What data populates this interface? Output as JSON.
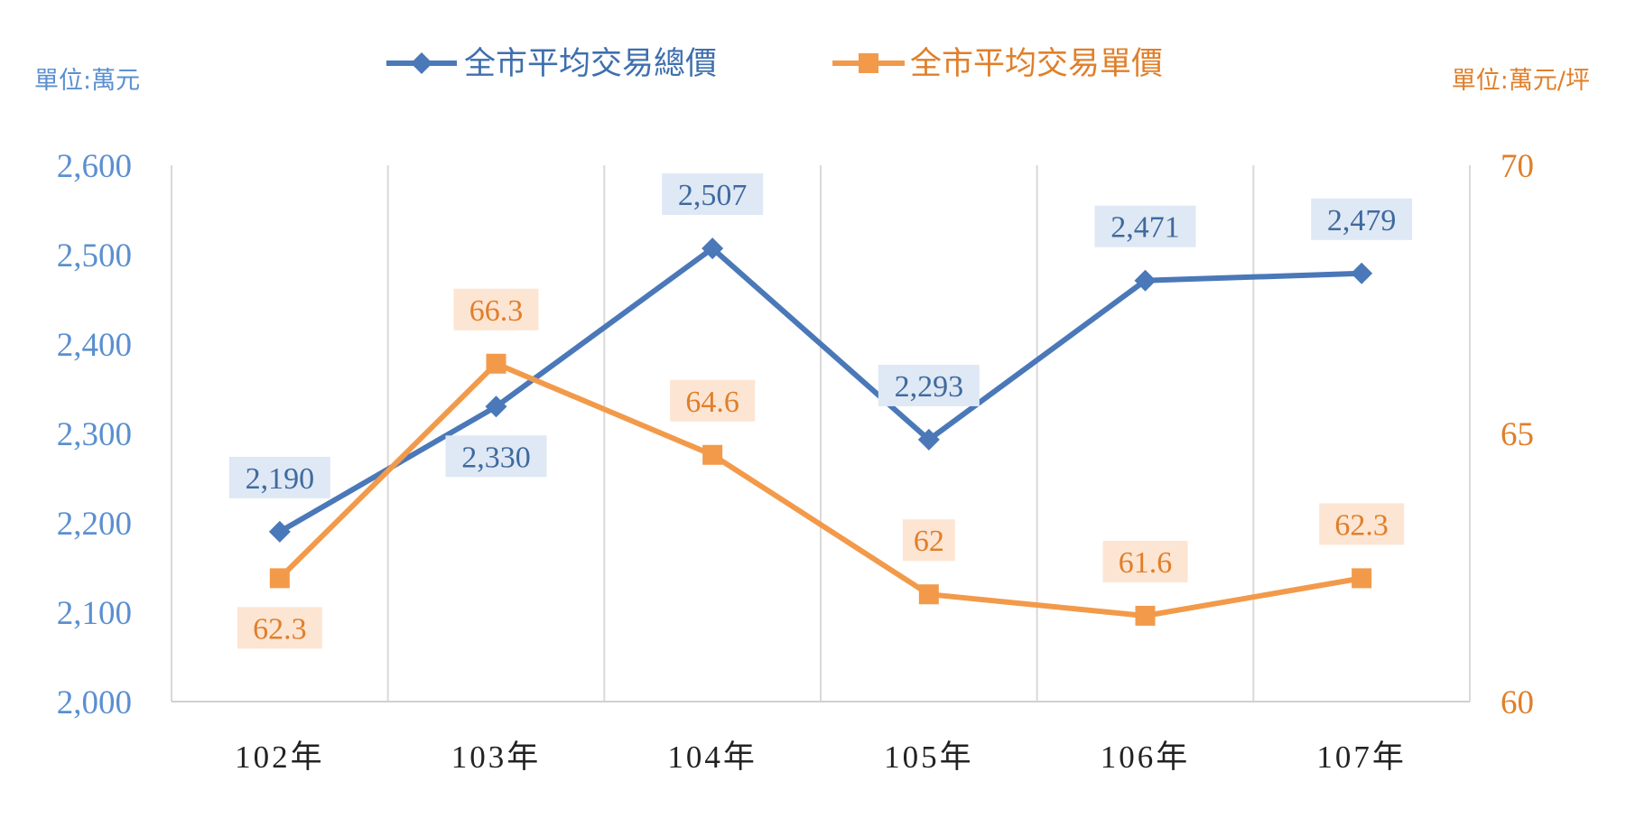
{
  "chart_data": {
    "type": "line",
    "categories": [
      "102年",
      "103年",
      "104年",
      "105年",
      "106年",
      "107年"
    ],
    "series": [
      {
        "name": "全市平均交易總價",
        "axis": "left",
        "color": "#4a78b8",
        "marker": "diamond",
        "values": [
          2190,
          2330,
          2507,
          2293,
          2471,
          2479
        ],
        "labels": [
          "2,190",
          "2,330",
          "2,507",
          "2,293",
          "2,471",
          "2,479"
        ],
        "label_positions": [
          "above",
          "below",
          "above",
          "above",
          "above",
          "above"
        ]
      },
      {
        "name": "全市平均交易單價",
        "axis": "right",
        "color": "#f29a4a",
        "marker": "square",
        "values": [
          62.3,
          66.3,
          64.6,
          62,
          61.6,
          62.3
        ],
        "labels": [
          "62.3",
          "66.3",
          "64.6",
          "62",
          "61.6",
          "62.3"
        ],
        "label_positions": [
          "below",
          "above",
          "above",
          "above",
          "above",
          "above"
        ]
      }
    ],
    "y_left": {
      "unit_label": "單位:萬元",
      "range": [
        2000,
        2600
      ],
      "ticks": [
        "2,000",
        "2,100",
        "2,200",
        "2,300",
        "2,400",
        "2,500",
        "2,600"
      ],
      "color": "#5b8fd0"
    },
    "y_right": {
      "unit_label": "單位:萬元/坪",
      "range": [
        60,
        70
      ],
      "ticks": [
        "60",
        "65",
        "70"
      ],
      "color": "#e07f2a"
    },
    "grid": "vertical",
    "legend_placement": "top-center",
    "title": ""
  }
}
